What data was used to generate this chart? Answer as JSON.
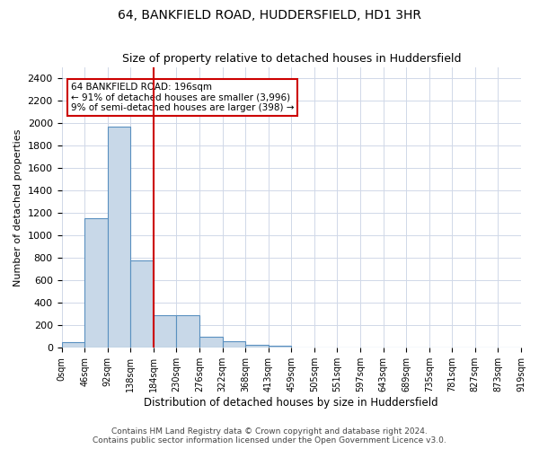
{
  "title": "64, BANKFIELD ROAD, HUDDERSFIELD, HD1 3HR",
  "subtitle": "Size of property relative to detached houses in Huddersfield",
  "xlabel": "Distribution of detached houses by size in Huddersfield",
  "ylabel": "Number of detached properties",
  "bar_color": "#c8d8e8",
  "bar_edge_color": "#5a90c0",
  "background_color": "#ffffff",
  "grid_color": "#d0d8e8",
  "annotation_box_color": "#cc0000",
  "vline_color": "#cc0000",
  "vline_x": 3.5,
  "annotation_text": "64 BANKFIELD ROAD: 196sqm\n← 91% of detached houses are smaller (3,996)\n9% of semi-detached houses are larger (398) →",
  "footer_text": "Contains HM Land Registry data © Crown copyright and database right 2024.\nContains public sector information licensed under the Open Government Licence v3.0.",
  "bins": [
    "0sqm",
    "46sqm",
    "92sqm",
    "138sqm",
    "184sqm",
    "230sqm",
    "276sqm",
    "322sqm",
    "368sqm",
    "413sqm",
    "459sqm",
    "505sqm",
    "551sqm",
    "597sqm",
    "643sqm",
    "689sqm",
    "735sqm",
    "781sqm",
    "827sqm",
    "873sqm"
  ],
  "values": [
    50,
    1150,
    1970,
    775,
    290,
    290,
    100,
    55,
    30,
    20,
    5,
    0,
    0,
    0,
    0,
    0,
    0,
    0,
    0,
    0
  ],
  "ylim": [
    0,
    2500
  ],
  "yticks": [
    0,
    200,
    400,
    600,
    800,
    1000,
    1200,
    1400,
    1600,
    1800,
    2000,
    2200,
    2400
  ],
  "extra_tick": "919sqm"
}
